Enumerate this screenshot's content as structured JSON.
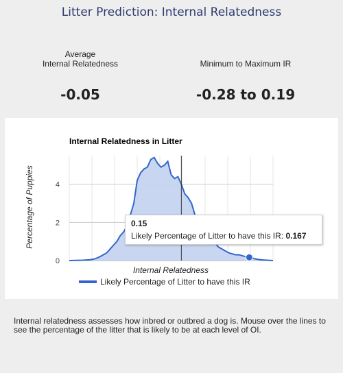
{
  "page": {
    "title": "Litter Prediction: Internal Relatedness",
    "average_label_line1": "Average",
    "average_label_line2": "Internal Relatedness",
    "average_value": "-0.05",
    "range_label": "Minimum to Maximum IR",
    "range_value": "-0.28 to 0.19",
    "description": "Internal relatedness assesses how inbred or outbred a dog is. Mouse over the lines to see the percentage of the litter that is likely to be at each level of OI."
  },
  "tooltip": {
    "x_value": "0.15",
    "series_label": "Likely Percentage of Litter to have this IR:",
    "y_value": "0.167"
  },
  "colors": {
    "series_line": "#3366cc",
    "series_fill": "#c2d1f0",
    "title": "#2e3a6e"
  },
  "chart_data": {
    "type": "area",
    "title": "Internal Relatedness in Litter",
    "xlabel": "Internal Relatedness",
    "ylabel": "Percentage of Puppies",
    "xlim": [
      -0.38,
      0.22
    ],
    "ylim": [
      0,
      5.5
    ],
    "yticks": [
      0,
      2,
      4
    ],
    "legend_position": "bottom",
    "grid": true,
    "series": [
      {
        "name": "Likely Percentage of Litter to have this IR",
        "x": [
          -0.38,
          -0.34,
          -0.32,
          -0.31,
          -0.3,
          -0.29,
          -0.28,
          -0.27,
          -0.26,
          -0.25,
          -0.24,
          -0.23,
          -0.22,
          -0.21,
          -0.2,
          -0.19,
          -0.18,
          -0.17,
          -0.16,
          -0.15,
          -0.14,
          -0.13,
          -0.12,
          -0.11,
          -0.1,
          -0.09,
          -0.08,
          -0.07,
          -0.06,
          -0.05,
          -0.04,
          -0.03,
          -0.02,
          -0.01,
          0.0,
          0.01,
          0.02,
          0.03,
          0.04,
          0.05,
          0.06,
          0.07,
          0.08,
          0.09,
          0.1,
          0.11,
          0.12,
          0.13,
          0.14,
          0.15,
          0.16,
          0.17,
          0.18,
          0.19,
          0.22
        ],
        "y": [
          0,
          0.02,
          0.04,
          0.07,
          0.12,
          0.2,
          0.3,
          0.4,
          0.6,
          0.8,
          1.0,
          1.3,
          1.5,
          1.8,
          2.4,
          3.0,
          4.2,
          4.6,
          4.8,
          4.9,
          5.3,
          5.4,
          5.1,
          4.9,
          5.0,
          5.2,
          4.5,
          4.3,
          4.4,
          4.0,
          3.5,
          3.3,
          3.0,
          2.4,
          2.0,
          1.8,
          1.5,
          1.3,
          1.1,
          0.9,
          0.7,
          0.6,
          0.5,
          0.4,
          0.35,
          0.3,
          0.3,
          0.25,
          0.2,
          0.167,
          0.12,
          0.08,
          0.05,
          0.03,
          0.0
        ]
      }
    ],
    "average_marker_x": -0.05,
    "highlight_x": 0.15
  }
}
